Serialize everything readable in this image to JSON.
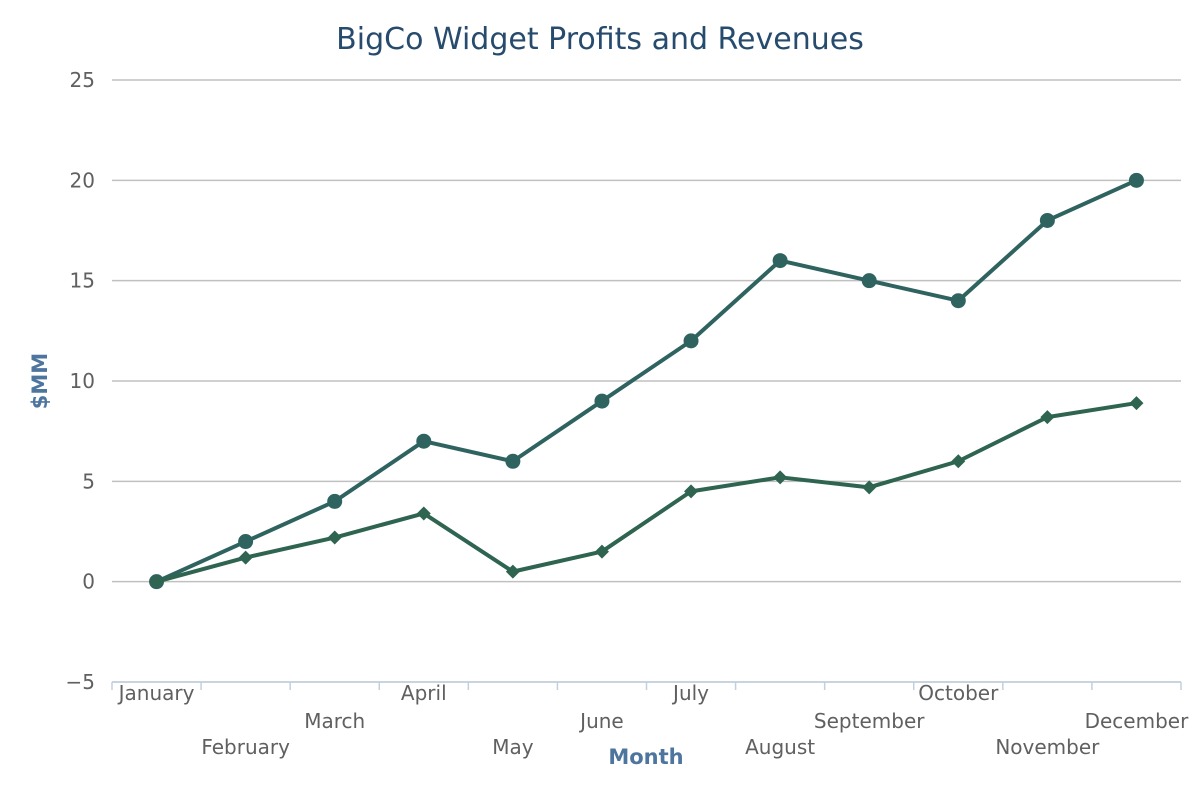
{
  "chart_data": {
    "type": "line",
    "title": "BigCo Widget Profits and Revenues",
    "xlabel": "Month",
    "ylabel": "$MM",
    "categories": [
      "January",
      "February",
      "March",
      "April",
      "May",
      "June",
      "July",
      "August",
      "September",
      "October",
      "November",
      "December"
    ],
    "ylim": [
      -5,
      25
    ],
    "yticks": [
      -5,
      0,
      5,
      10,
      15,
      20,
      25
    ],
    "grid": true,
    "legend": "none",
    "series": [
      {
        "marker": "circle",
        "color": "#2f6360",
        "values": [
          0,
          2,
          4,
          7,
          6,
          9,
          12,
          16,
          15,
          14,
          18,
          20
        ]
      },
      {
        "marker": "diamond",
        "color": "#2e6450",
        "values": [
          0,
          1.2,
          2.2,
          3.4,
          0.5,
          1.5,
          4.5,
          5.2,
          4.7,
          6,
          8.2,
          8.9
        ]
      }
    ]
  }
}
